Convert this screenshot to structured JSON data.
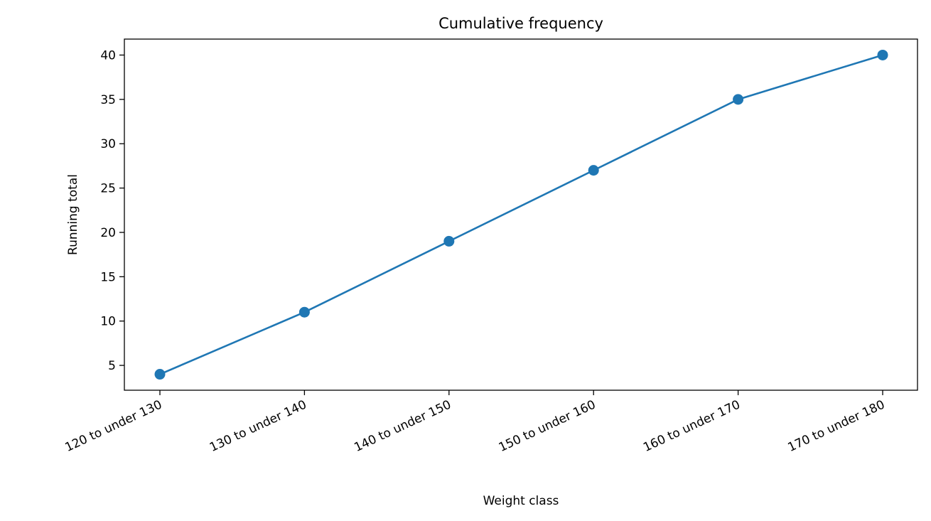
{
  "chart_data": {
    "type": "line",
    "title": "Cumulative frequency",
    "xlabel": "Weight class",
    "ylabel": "Running total",
    "categories": [
      "120 to under 130",
      "130 to under 140",
      "140 to under 150",
      "150 to under 160",
      "160 to under 170",
      "170 to under 180"
    ],
    "series": [
      {
        "values": [
          4,
          11,
          19,
          27,
          35,
          40
        ],
        "color": "#1f77b4",
        "marker": "circle"
      }
    ],
    "ylim": [
      2.2,
      41.8
    ],
    "yticks": [
      5,
      10,
      15,
      20,
      25,
      30,
      35,
      40
    ],
    "grid": false,
    "legend": "none"
  }
}
